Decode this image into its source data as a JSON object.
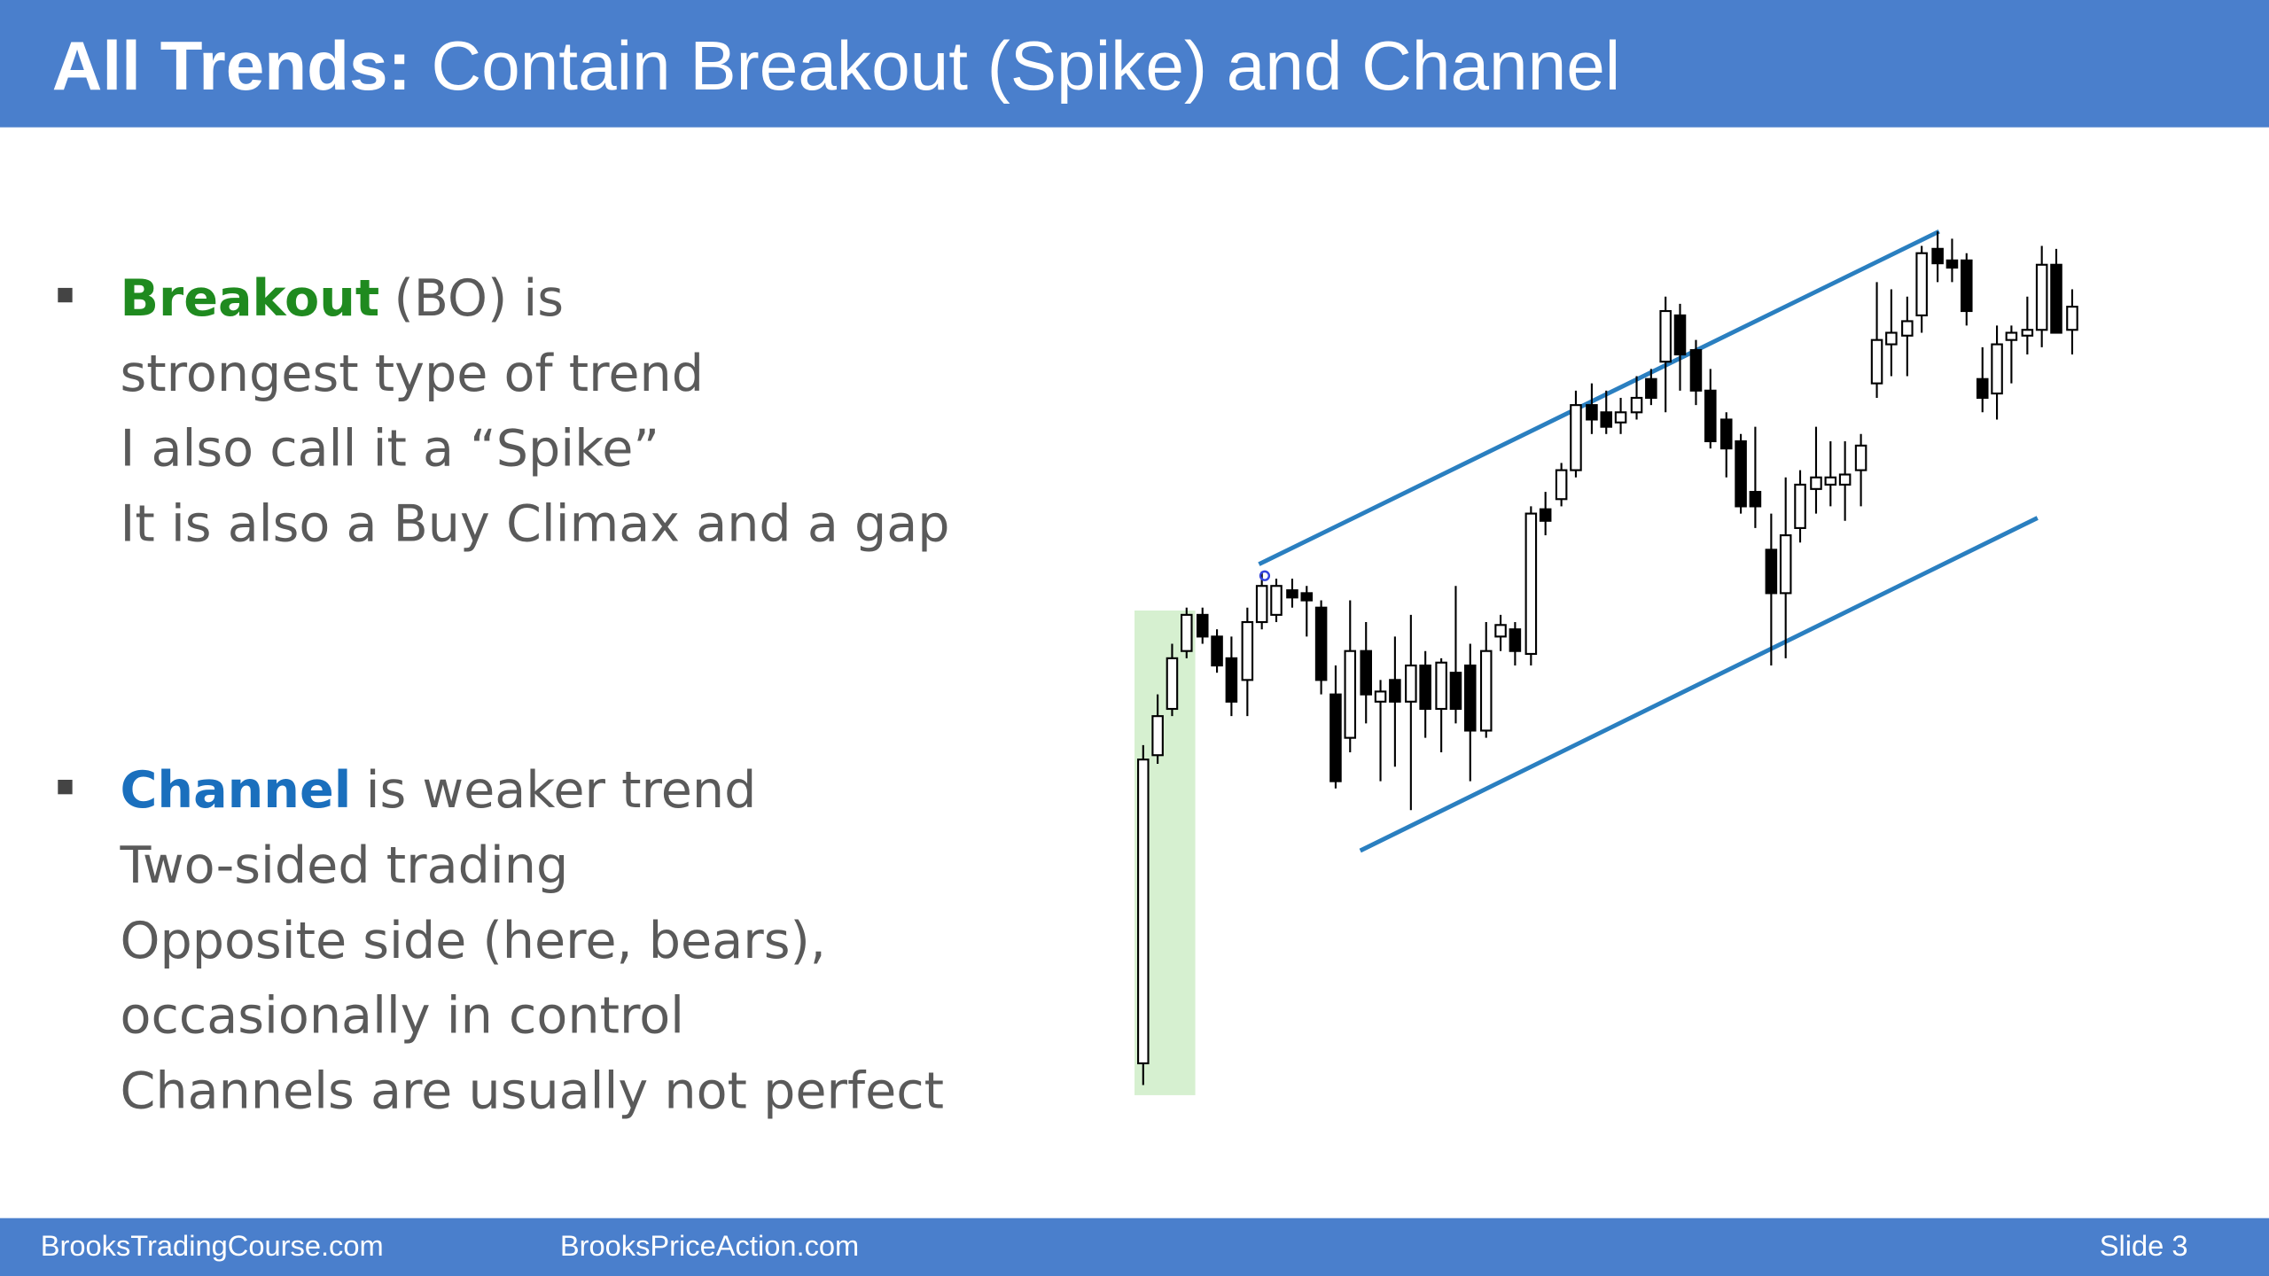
{
  "header": {
    "title_bold": "All Trends:",
    "title_rest": "Contain Breakout (Spike) and Channel"
  },
  "bullets": [
    {
      "keyword": "Breakout",
      "lines": [
        "(BO) is",
        "strongest type of trend",
        "I also call it a “Spike”",
        "It is also a Buy Climax and a gap"
      ]
    },
    {
      "keyword": "Channel",
      "lines": [
        "is weaker trend",
        "Two-sided trading",
        "Opposite side (here, bears),",
        "occasionally in control",
        "Channels are usually not perfect"
      ]
    }
  ],
  "footer": {
    "left": "BrooksTradingCourse.com",
    "center": "BrooksPriceAction.com",
    "slide": "Slide  3"
  }
}
